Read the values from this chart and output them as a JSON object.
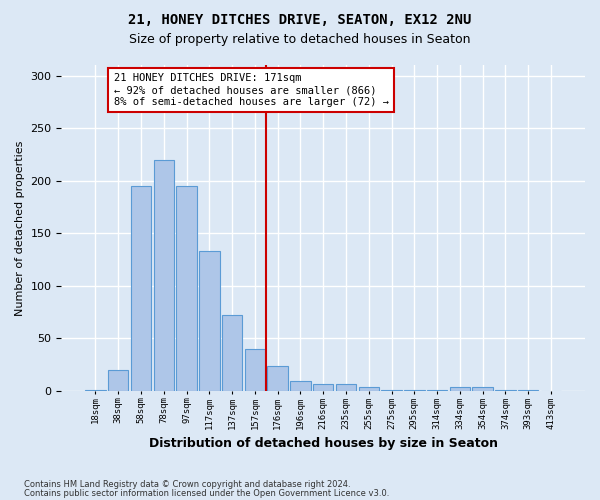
{
  "title1": "21, HONEY DITCHES DRIVE, SEATON, EX12 2NU",
  "title2": "Size of property relative to detached houses in Seaton",
  "xlabel": "Distribution of detached houses by size in Seaton",
  "ylabel": "Number of detached properties",
  "footnote1": "Contains HM Land Registry data © Crown copyright and database right 2024.",
  "footnote2": "Contains public sector information licensed under the Open Government Licence v3.0.",
  "annotation_title": "21 HONEY DITCHES DRIVE: 171sqm",
  "annotation_line1": "← 92% of detached houses are smaller (866)",
  "annotation_line2": "8% of semi-detached houses are larger (72) →",
  "bar_values": [
    1,
    20,
    195,
    220,
    195,
    133,
    72,
    40,
    24,
    9,
    7,
    7,
    4,
    1,
    1,
    1,
    4,
    4,
    1,
    1,
    0
  ],
  "bar_labels": [
    "18sqm",
    "38sqm",
    "58sqm",
    "78sqm",
    "97sqm",
    "117sqm",
    "137sqm",
    "157sqm",
    "176sqm",
    "196sqm",
    "216sqm",
    "235sqm",
    "255sqm",
    "275sqm",
    "295sqm",
    "314sqm",
    "334sqm",
    "354sqm",
    "374sqm",
    "393sqm",
    "413sqm"
  ],
  "bar_color": "#aec6e8",
  "bar_edge_color": "#5b9bd5",
  "vline_color": "#cc0000",
  "annotation_box_edge": "#cc0000",
  "background_color": "#dce8f5",
  "grid_color": "#ffffff",
  "ylim": [
    0,
    310
  ],
  "yticks": [
    0,
    50,
    100,
    150,
    200,
    250,
    300
  ],
  "vline_x": 7.5
}
